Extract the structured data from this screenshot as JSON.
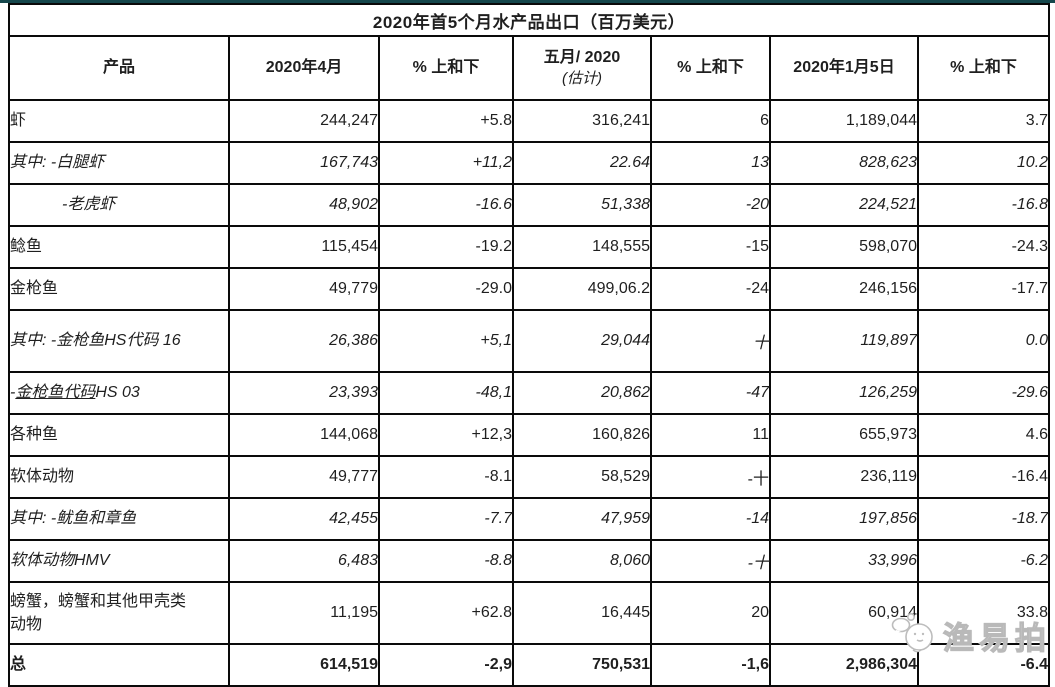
{
  "page": {
    "top_divider_color": "#15474c"
  },
  "table": {
    "title": "2020年首5个月水产品出口（百万美元）",
    "columns": [
      "产品",
      "2020年4月",
      "% 上和下",
      "五月/ 2020",
      "% 上和下",
      "2020年1月5日",
      "% 上和下"
    ],
    "col4_sub": "(估计)",
    "rows": [
      {
        "label": "虾",
        "style": "normal",
        "values": [
          "244,247",
          "+5.8",
          "316,241",
          "6",
          "1,189,044",
          "3.7"
        ]
      },
      {
        "label": "其中: -白腿虾",
        "style": "italic",
        "values": [
          "167,743",
          "+11,2",
          "22.64",
          "13",
          "828,623",
          "10.2"
        ]
      },
      {
        "label": "-老虎虾",
        "style": "italic",
        "indent": true,
        "values": [
          "48,902",
          "-16.6",
          "51,338",
          "-20",
          "224,521",
          "-16.8"
        ]
      },
      {
        "label": "鲶鱼",
        "style": "normal",
        "values": [
          "115,454",
          "-19.2",
          "148,555",
          "-15",
          "598,070",
          "-24.3"
        ]
      },
      {
        "label": "金枪鱼",
        "style": "normal",
        "values": [
          "49,779",
          "-29.0",
          "499,06.2",
          "-24",
          "246,156",
          "-17.7"
        ]
      },
      {
        "label": "其中: -金枪鱼HS代码 16",
        "style": "italic",
        "values": [
          "26,386",
          "+5,1",
          "29,044",
          "十",
          "119,897",
          "0.0"
        ]
      },
      {
        "label": "-金枪鱼代码HS 03",
        "style": "italic",
        "underline": "金枪鱼代码",
        "values": [
          "23,393",
          "-48,1",
          "20,862",
          "-47",
          "126,259",
          "-29.6"
        ]
      },
      {
        "label": "各种鱼",
        "style": "normal",
        "values": [
          "144,068",
          "+12,3",
          "160,826",
          "11",
          "655,973",
          "4.6"
        ]
      },
      {
        "label": "软体动物",
        "style": "normal",
        "values": [
          "49,777",
          "-8.1",
          "58,529",
          "-十",
          "236,119",
          "-16.4"
        ]
      },
      {
        "label": "其中: -鱿鱼和章鱼",
        "style": "italic",
        "values": [
          "42,455",
          "-7.7",
          "47,959",
          "-14",
          "197,856",
          "-18.7"
        ]
      },
      {
        "label": "软体动物HMV",
        "style": "italic",
        "values": [
          "6,483",
          "-8.8",
          "8,060",
          "-十",
          "33,996",
          "-6.2"
        ]
      },
      {
        "label": "螃蟹，螃蟹和其他甲壳类动物",
        "style": "normal",
        "values": [
          "11,195",
          "+62.8",
          "16,445",
          "20",
          "60,914",
          "33.8"
        ]
      },
      {
        "label": "总",
        "style": "bold",
        "values": [
          "614,519",
          "-2,9",
          "750,531",
          "-1,6",
          "2,986,304",
          "-6.4"
        ]
      }
    ]
  },
  "watermark": {
    "text": "渔易拍"
  }
}
